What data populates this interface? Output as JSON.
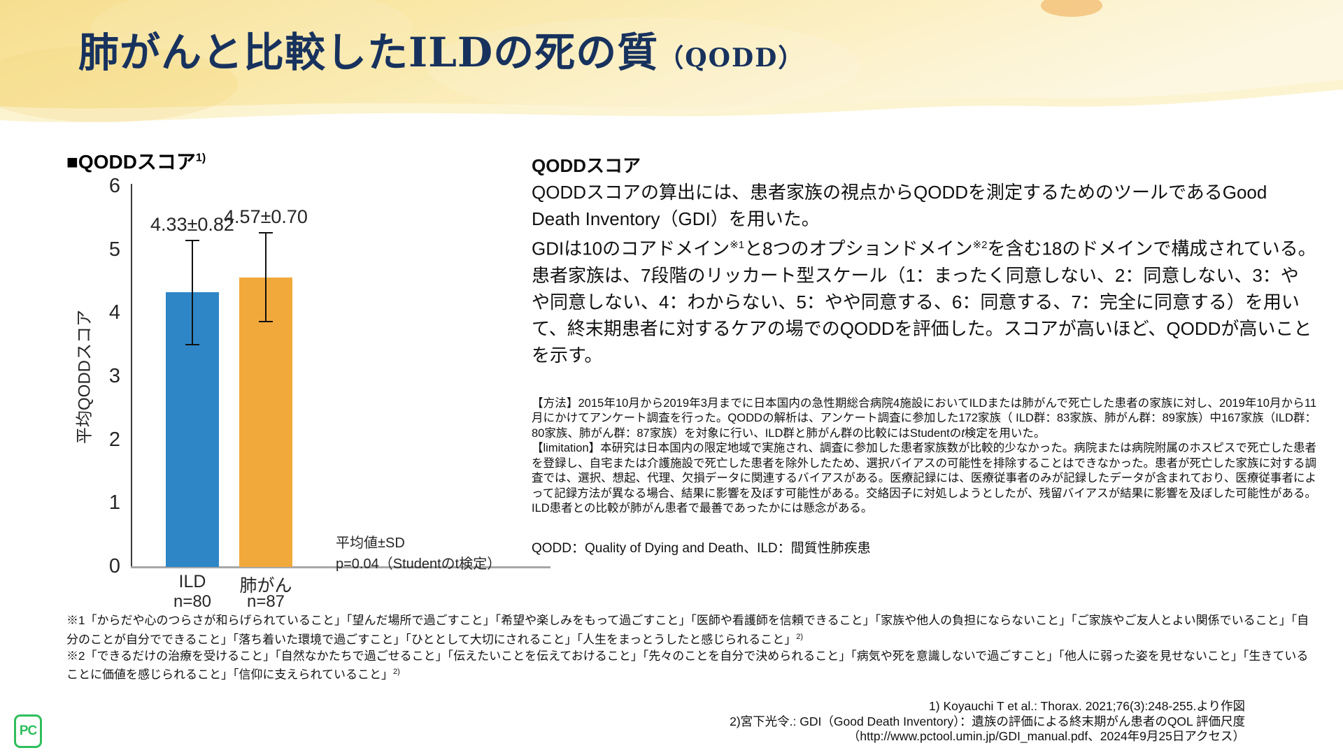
{
  "header": {
    "title": "肺がんと比較したILDの死の質",
    "title_suffix": "（QODD）"
  },
  "chart": {
    "heading": "■QODDスコア",
    "heading_sup": "1)",
    "annotation_line1": "平均値±SD",
    "annotation_line2": "p=0.04（Studentのt検定）"
  },
  "chart_data": {
    "type": "bar",
    "title": "QODDスコア",
    "ylabel": "平均QODDスコア",
    "ylim": [
      0,
      6
    ],
    "yticks": [
      0,
      1,
      2,
      3,
      4,
      5,
      6
    ],
    "categories": [
      "ILD",
      "肺がん"
    ],
    "n_labels": [
      "n=80",
      "n=87"
    ],
    "values": [
      4.33,
      4.57
    ],
    "sd": [
      0.82,
      0.7
    ],
    "value_labels": [
      "4.33±0.82",
      "4.57±0.70"
    ],
    "bar_colors": [
      "#2E86C7",
      "#F2A93B"
    ],
    "grid": false,
    "legend_position": "none",
    "annotation": "平均値±SD p=0.04（Studentのt検定）"
  },
  "right_panel": {
    "heading": "QODDスコア",
    "p1": "QODDスコアの算出には、患者家族の視点からQODDを測定するためのツールであるGood Death Inventory（GDI）を用いた。",
    "p2_pre": "GDIは10のコアドメイン",
    "p2_sup1": "※1",
    "p2_mid": "と8つのオプションドメイン",
    "p2_sup2": "※2",
    "p2_post": "を含む18のドメインで構成されている。",
    "p3": "患者家族は、7段階のリッカート型スケール（1：まったく同意しない、2：同意しない、3：やや同意しない、4：わからない、5：やや同意する、6：同意する、7：完全に同意する）を用いて、終末期患者に対するケアの場でのQODDを評価した。スコアが高いほど、QODDが高いことを示す。",
    "methods_pre": "【方法】2015年10月から2019年3月までに日本国内の急性期総合病院4施設においてILDまたは肺がんで死亡した患者の家族に対し、2019年10月から11月にかけてアンケート調査を行った。QODDの解析は、アンケート調査に参加した172家族（ ILD群：83家族、肺がん群：89家族）中167家族（ILD群：80家族、肺がん群：87家族）を対象に行い、ILD群と肺がん群の比較にはStudentの",
    "methods_italic": "t",
    "methods_post": "検定を用いた。",
    "limitation": "【limitation】本研究は日本国内の限定地域で実施され、調査に参加した患者家族数が比較的少なかった。病院または病院附属のホスピスで死亡した患者を登録し、自宅または介護施設で死亡した患者を除外したため、選択バイアスの可能性を排除することはできなかった。患者が死亡した家族に対する調査では、選択、想起、代理、欠損データに関連するバイアスがある。医療記録には、医療従事者のみが記録したデータが含まれており、医療従事者によって記録方法が異なる場合、結果に影響を及ぼす可能性がある。交絡因子に対処しようとしたが、残留バイアスが結果に影響を及ぼした可能性がある。ILD患者との比較が肺がん患者で最善であったかには懸念がある。",
    "abbreviations": "QODD：Quality of Dying and Death、ILD：間質性肺疾患"
  },
  "footnotes": {
    "fn1_text": "※1「からだや心のつらさが和らげられていること」「望んだ場所で過ごすこと」「希望や楽しみをもって過ごすこと」「医師や看護師を信頼できること」「家族や他人の負担にならないこと」「ご家族やご友人とよい関係でいること」「自分のことが自分でできること」「落ち着いた環境で過ごすこと」「ひととして大切にされること」「人生をまっとうしたと感じられること」",
    "fn1_sup": "2)",
    "fn2_text": "※2「できるだけの治療を受けること」「自然なかたちで過ごせること」「伝えたいことを伝えておけること」「先々のことを自分で決められること」「病気や死を意識しないで過ごすこと」「他人に弱った姿を見せないこと」「生きていることに価値を感じられること」「信仰に支えられていること」",
    "fn2_sup": "2)"
  },
  "references": [
    "1) Koyauchi T et al.: Thorax. 2021;76(3):248-255.より作図",
    "2)宮下光令.: GDI（Good Death Inventory）：遺族の評価による終末期がん患者のQOL 評価尺度",
    "（http://www.pctool.umin.jp/GDI_manual.pdf、2024年9月25日アクセス）"
  ],
  "logo": {
    "text": "PC"
  },
  "colors": {
    "title_navy": "#18325E",
    "bar_ild_blue": "#2E86C7",
    "bar_lung_orange": "#F2A93B",
    "logo_green": "#2FBE5C"
  }
}
